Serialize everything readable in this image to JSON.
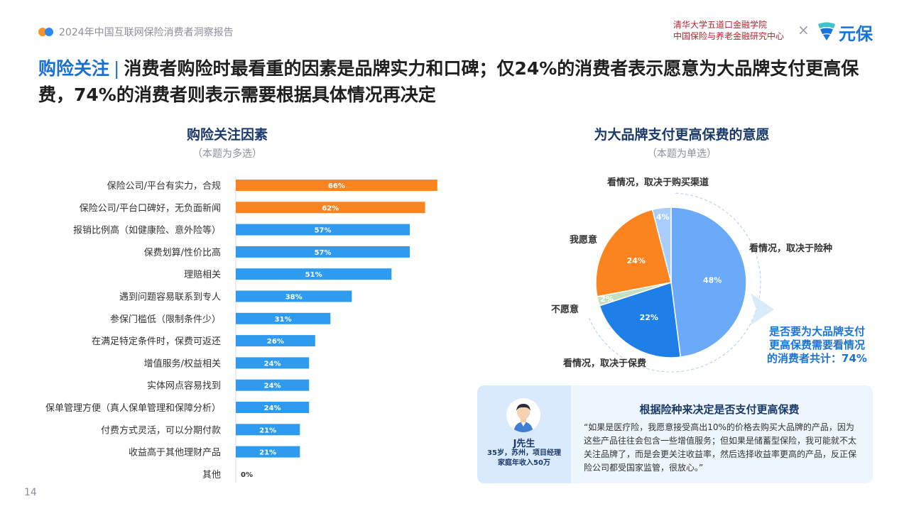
{
  "header": {
    "report_title": "2024年中国互联网保险消费者洞察报告",
    "partner_line1": "清华大学五道口金融学院",
    "partner_line2": "中国保险与养老金融研究中心",
    "times_sign": "×",
    "brand_name": "元保",
    "brand_logo_icon": "yuanbao-shield-logo-icon"
  },
  "headline": {
    "tag": "购险关注",
    "separator": "|",
    "text": "消费者购险时最看重的因素是品牌实力和口碑；仅24%的消费者表示愿意为大品牌支付更高保费，74%的消费者则表示需要根据具体情况再决定"
  },
  "left_panel": {
    "title": "购险关注因素",
    "subtitle": "（本题为多选）"
  },
  "right_panel": {
    "title": "为大品牌支付更高保费的意愿",
    "subtitle": "（本题为单选）"
  },
  "colors": {
    "orange": "#fb8420",
    "blue": "#2f9bee",
    "pie_light_blue": "#6aaaf9",
    "pie_blue": "#1f7fe9",
    "pie_green": "#c5dfc0",
    "pie_light": "#a9cefb"
  },
  "chart_data": [
    {
      "type": "bar",
      "orientation": "horizontal",
      "categories": [
        "保险公司/平台有实力，合规",
        "保险公司/平台口碑好，无负面新闻",
        "报销比例高（如健康险、意外险等）",
        "保费划算/性价比高",
        "理赔相关",
        "遇到问题容易联系到专人",
        "参保门槛低（限制条件少）",
        "在满足特定条件时，保费可返还",
        "增值服务/权益相关",
        "实体网点容易找到",
        "保单管理方便（真人保单管理和保障分析）",
        "付费方式灵活，可以分期付款",
        "收益高于其他理财产品",
        "其他"
      ],
      "values": [
        66,
        62,
        57,
        57,
        51,
        38,
        31,
        26,
        24,
        24,
        24,
        21,
        21,
        0
      ],
      "labels": [
        "66%",
        "62%",
        "57%",
        "57%",
        "51%",
        "38%",
        "31%",
        "26%",
        "24%",
        "24%",
        "24%",
        "21%",
        "21%",
        "0%"
      ],
      "highlight": [
        true,
        true,
        false,
        false,
        false,
        false,
        false,
        false,
        false,
        false,
        false,
        false,
        false,
        false
      ],
      "xlim": [
        0,
        100
      ]
    },
    {
      "type": "pie",
      "slices": [
        {
          "name": "看情况，取决于险种",
          "value": 48,
          "label": "48%",
          "color": "#6aaaf9"
        },
        {
          "name": "看情况，取决于保费",
          "value": 22,
          "label": "22%",
          "color": "#1f7fe9"
        },
        {
          "name": "不愿意",
          "value": 2,
          "label": "2%",
          "color": "#c5dfc0"
        },
        {
          "name": "我愿意",
          "value": 24,
          "label": "24%",
          "color": "#fb8420"
        },
        {
          "name": "看情况，取决于购买渠道",
          "value": 4,
          "label": "4%",
          "color": "#a9cefb"
        }
      ],
      "annotation": "是否要为大品牌支付更高保费需要看情况的消费者共计：74%"
    }
  ],
  "callout": {
    "line1": "是否要为大品牌支付",
    "line2": "更高保费需要看情况",
    "line3": "的消费者共计：74%"
  },
  "quote": {
    "persona_name": "J先生",
    "persona_line1": "35岁，苏州，项目经理",
    "persona_line2": "家庭年收入50万",
    "avatar_icon": "man-avatar-icon",
    "title": "根据险种来决定是否支付更高保费",
    "text": "“如果是医疗险，我愿意接受高出10%的价格去购买大品牌的产品，因为这些产品往往会包含一些增值服务；但如果是储蓄型保险，我可能就不太关注品牌了，而是会更关注收益率，然后选择收益率更高的产品，反正保险公司都受国家监管，很放心。”"
  },
  "page_number": "14"
}
